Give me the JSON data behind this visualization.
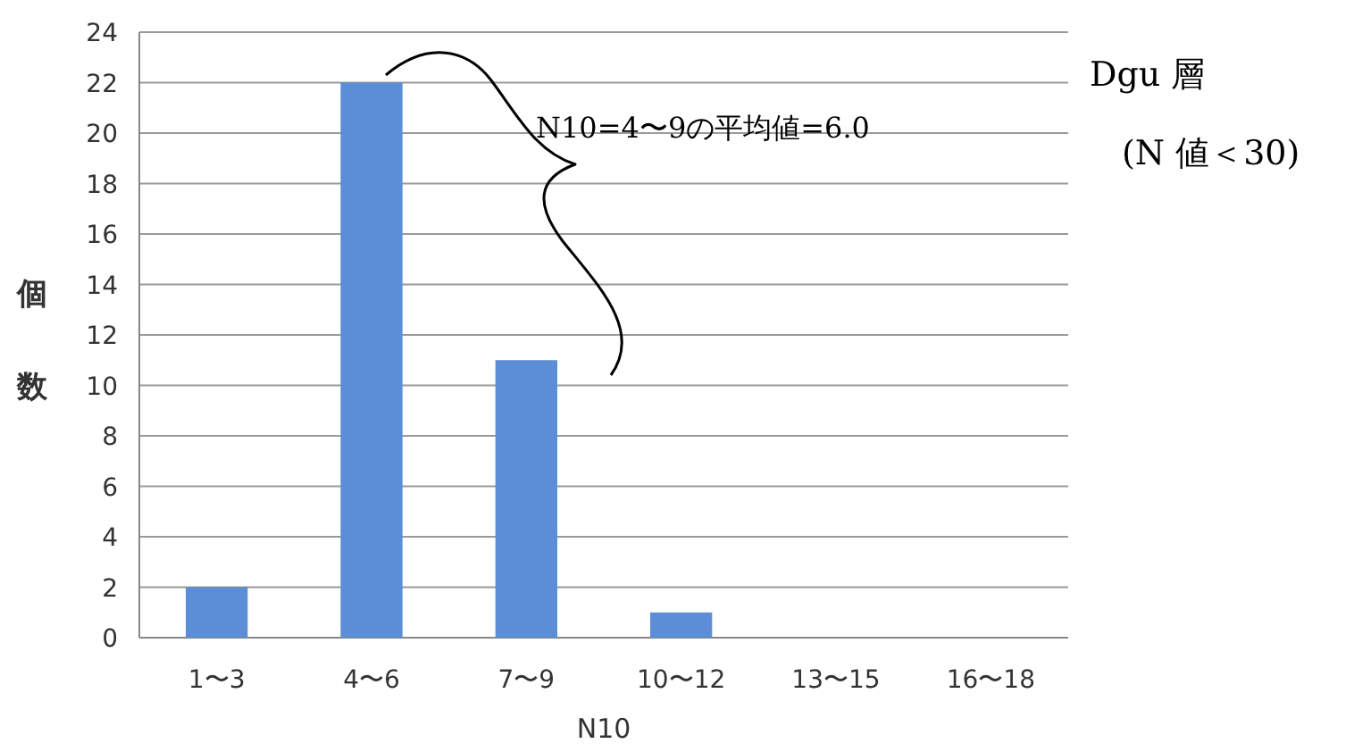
{
  "chart_data": {
    "type": "bar",
    "title": "Dgu 層",
    "subtitle": "(N 値＜30)",
    "xlabel": "N10",
    "ylabel": "個数",
    "categories": [
      "1〜3",
      "4〜6",
      "7〜9",
      "10〜12",
      "13〜15",
      "16〜18"
    ],
    "values": [
      2,
      22,
      11,
      1,
      0,
      0
    ],
    "color": "#5b8ed6",
    "ylim": [
      0,
      24
    ],
    "yticks": [
      0,
      2,
      4,
      6,
      8,
      10,
      12,
      14,
      16,
      18,
      20,
      22,
      24
    ],
    "grid": "y",
    "annotations": [
      "N10=4〜9の平均値=6.0"
    ]
  }
}
